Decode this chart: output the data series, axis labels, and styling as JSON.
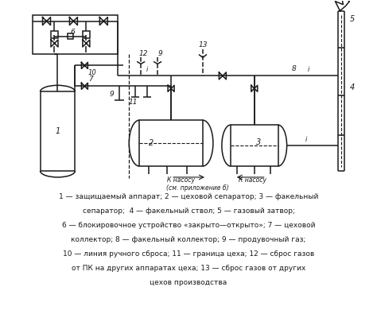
{
  "bg": "#ffffff",
  "lc": "#1a1a1a",
  "tc": "#1a1a1a",
  "legend": [
    "1 — защищаемый аппарат; 2 — цеховой сепаратор; 3 — факельный",
    "сепаратор;  4 — факельный ствол; 5 — газовый затвор;",
    "6 — блокировочное устройство «закрыто—открыто»; 7 — цеховой",
    "коллектор; 8 — факельный коллектор; 9 — продувочный газ;",
    "10 — линия ручного сброса; 11 — граница цеха; 12 — сброс газов",
    "от ПК на других аппаратах цеха; 13 — сброс газов от других",
    "цехов производства"
  ],
  "k_nasosu": "К насосу",
  "sm_pril": "(см. приложение б)"
}
